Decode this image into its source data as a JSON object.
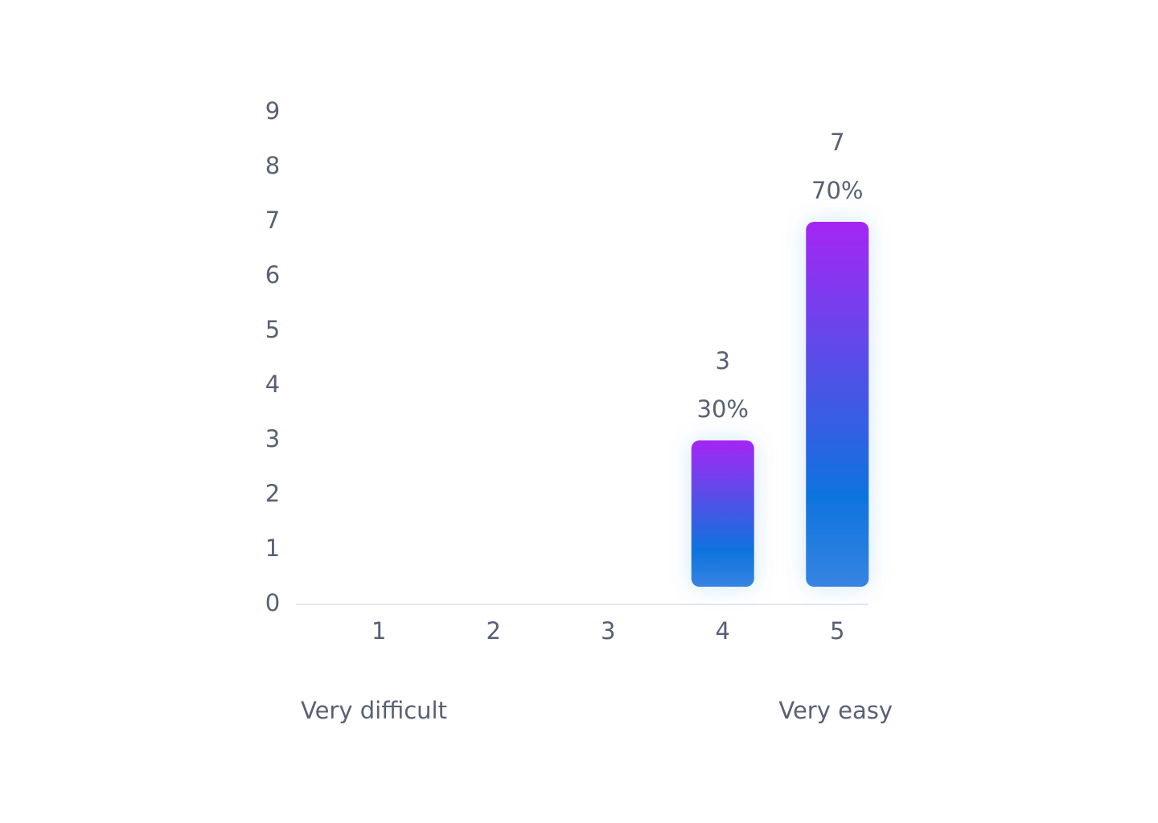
{
  "chart_data": {
    "type": "bar",
    "categories": [
      "1",
      "2",
      "3",
      "4",
      "5"
    ],
    "values": [
      0,
      0,
      0,
      3,
      7
    ],
    "percentages": [
      null,
      null,
      null,
      30,
      70
    ],
    "percentage_labels": [
      null,
      null,
      null,
      "30%",
      "70%"
    ],
    "scale_labels": [
      "Very difficult",
      "Very easy"
    ],
    "ylim": [
      0,
      9
    ],
    "yticks": [
      0,
      1,
      2,
      3,
      4,
      5,
      6,
      7,
      8,
      9
    ],
    "gradient": [
      "#a526f3",
      "#0e73de",
      "#3784e2"
    ]
  }
}
